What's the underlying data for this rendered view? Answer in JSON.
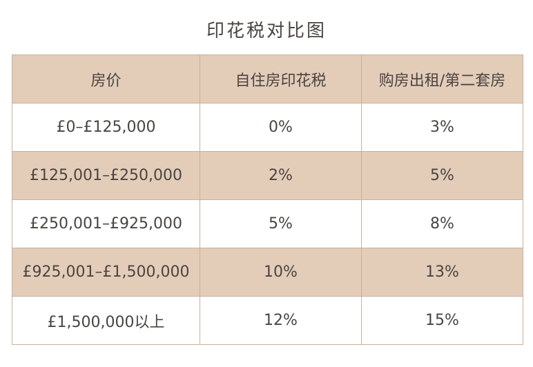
{
  "title": "印花税对比图",
  "table": {
    "headers": [
      "房价",
      "自住房印花税",
      "购房出租/第二套房"
    ],
    "rows": [
      [
        "£0–£125,000",
        "0%",
        "3%"
      ],
      [
        "£125,001–£250,000",
        "2%",
        "5%"
      ],
      [
        "£250,001–£925,000",
        "5%",
        "8%"
      ],
      [
        "£925,001–£1,500,000",
        "10%",
        "13%"
      ],
      [
        "£1,500,000以上",
        "12%",
        "15%"
      ]
    ]
  },
  "colors": {
    "band": "#e3cdb9",
    "border": "#c9b09a",
    "text": "#4a4440"
  }
}
